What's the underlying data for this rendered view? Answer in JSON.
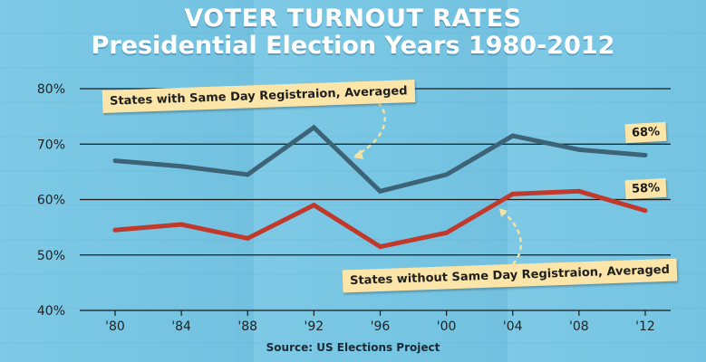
{
  "title_line1": "VOTER TURNOUT RATES",
  "title_line2": "Presidential Election Years 1980-2012",
  "source": "Source: US Elections Project",
  "colors": {
    "background": "#77c6e4",
    "same_day": "#3d6377",
    "without_same_day": "#c0392b",
    "callout": "#fbe5a8",
    "arrow": "#f3e3a0"
  },
  "chart_data": {
    "type": "line",
    "title": "VOTER TURNOUT RATES Presidential Election Years 1980-2012",
    "categories": [
      "'80",
      "'84",
      "'88",
      "'92",
      "'96",
      "'00",
      "'04",
      "'08",
      "'12"
    ],
    "y_tick_labels": [
      "80%",
      "70%",
      "60%",
      "50%",
      "40%"
    ],
    "y_ticks": [
      80,
      70,
      60,
      50,
      40
    ],
    "ylim": [
      40,
      80
    ],
    "grid": true,
    "series": [
      {
        "name": "States with Same Day Registraion, Averaged",
        "values": [
          67,
          66,
          64.5,
          73,
          61.5,
          64.5,
          71.5,
          69,
          68
        ],
        "end_label": "68%"
      },
      {
        "name": "States without Same Day Registraion, Averaged",
        "values": [
          54.5,
          55.5,
          53,
          59,
          51.5,
          54,
          61,
          61.5,
          58
        ],
        "end_label": "58%"
      }
    ]
  }
}
